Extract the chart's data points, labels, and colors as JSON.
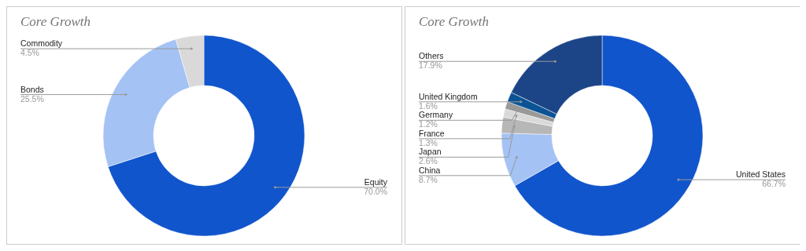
{
  "chart_data": [
    {
      "type": "donut",
      "title": "Core Growth",
      "categories": [
        "Equity",
        "Bonds",
        "Commodity"
      ],
      "values": [
        70.0,
        25.5,
        4.5
      ],
      "value_labels": [
        "70.0%",
        "25.5%",
        "4.5%"
      ],
      "colors": [
        "#1155cc",
        "#a4c2f4",
        "#d9d9d9"
      ]
    },
    {
      "type": "donut",
      "title": "Core Growth",
      "categories": [
        "United States",
        "China",
        "Japan",
        "France",
        "Germany",
        "United Kingdom",
        "Others"
      ],
      "values": [
        66.7,
        8.7,
        2.6,
        1.3,
        1.2,
        1.6,
        17.9
      ],
      "value_labels": [
        "66.7%",
        "8.7%",
        "2.6%",
        "1.3%",
        "1.2%",
        "1.6%",
        "17.9%"
      ],
      "colors": [
        "#1155cc",
        "#a4c2f4",
        "#b7b7b7",
        "#d9d9d9",
        "#999999",
        "#0b5394",
        "#1c4587"
      ]
    }
  ]
}
